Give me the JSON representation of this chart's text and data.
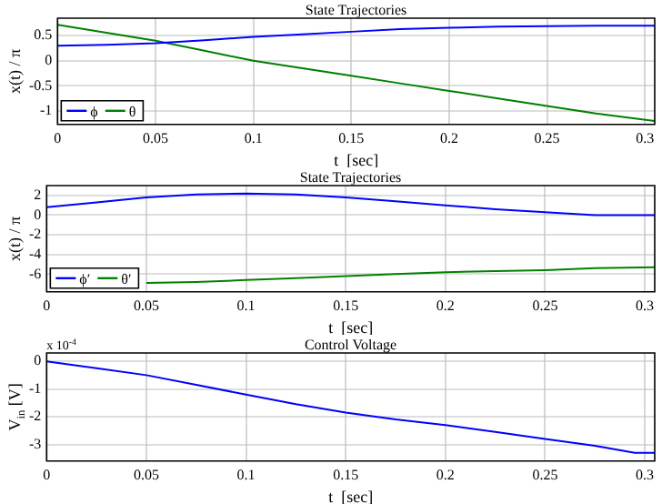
{
  "chart_data": [
    {
      "type": "line",
      "title": "State Trajectories",
      "xlabel": "t  [sec]",
      "ylabel": "x(t) / π",
      "x": [
        0,
        0.025,
        0.05,
        0.075,
        0.1,
        0.125,
        0.15,
        0.175,
        0.2,
        0.225,
        0.25,
        0.275,
        0.305
      ],
      "series": [
        {
          "name": "ϕ",
          "color": "#0000ff",
          "values": [
            0.3,
            0.32,
            0.35,
            0.41,
            0.48,
            0.53,
            0.58,
            0.63,
            0.66,
            0.68,
            0.69,
            0.7,
            0.7
          ]
        },
        {
          "name": "θ",
          "color": "#008000",
          "values": [
            0.72,
            0.56,
            0.4,
            0.2,
            0.0,
            -0.15,
            -0.3,
            -0.45,
            -0.6,
            -0.75,
            -0.9,
            -1.05,
            -1.2
          ]
        }
      ],
      "xlim": [
        0,
        0.305
      ],
      "xticks": [
        0,
        0.05,
        0.1,
        0.15,
        0.2,
        0.25,
        0.3
      ],
      "ylim": [
        -1.27,
        0.85
      ],
      "yticks": [
        -1,
        -0.5,
        0,
        0.5
      ],
      "grid": true,
      "legend": "bottom left",
      "line_style": "solid",
      "marker": "none"
    },
    {
      "type": "line",
      "title": "State Trajectories",
      "xlabel": "t  [sec]",
      "ylabel": "x(t) / π",
      "x": [
        0,
        0.025,
        0.05,
        0.075,
        0.1,
        0.125,
        0.15,
        0.175,
        0.2,
        0.225,
        0.25,
        0.275,
        0.305
      ],
      "series": [
        {
          "name": "ϕ′",
          "color": "#0000ff",
          "values": [
            0.8,
            1.3,
            1.8,
            2.1,
            2.2,
            2.1,
            1.8,
            1.4,
            1.0,
            0.6,
            0.3,
            0.0,
            0.0
          ]
        },
        {
          "name": "θ′",
          "color": "#008000",
          "values": [
            null,
            null,
            -6.9,
            -6.8,
            -6.6,
            -6.4,
            -6.2,
            -6.0,
            -5.8,
            -5.7,
            -5.6,
            -5.4,
            -5.3
          ]
        }
      ],
      "xlim": [
        0,
        0.305
      ],
      "xticks": [
        0,
        0.05,
        0.1,
        0.15,
        0.2,
        0.25,
        0.3
      ],
      "ylim": [
        -7.8,
        3
      ],
      "yticks": [
        -6,
        -4,
        -2,
        0,
        2
      ],
      "grid": true,
      "legend": "bottom left",
      "line_style": "solid",
      "marker": "none"
    },
    {
      "type": "line",
      "title": "Control Voltage",
      "xlabel": "t  [sec]",
      "ylabel": "V$_{in}$ [V]",
      "annotations": [
        "x 10$^{-4}$"
      ],
      "x": [
        0,
        0.025,
        0.05,
        0.075,
        0.1,
        0.125,
        0.15,
        0.175,
        0.2,
        0.225,
        0.25,
        0.275,
        0.295,
        0.305
      ],
      "series": [
        {
          "color": "#0000ff",
          "values": [
            0,
            -0.25,
            -0.5,
            -0.85,
            -1.2,
            -1.55,
            -1.85,
            -2.1,
            -2.3,
            -2.55,
            -2.8,
            -3.05,
            -3.3,
            -3.3
          ]
        }
      ],
      "xlim": [
        0,
        0.305
      ],
      "xticks": [
        0,
        0.05,
        0.1,
        0.15,
        0.2,
        0.25,
        0.3
      ],
      "ylim": [
        -3.6,
        0.3
      ],
      "yticks": [
        -3,
        -2,
        -1,
        0
      ],
      "grid": true,
      "legend": false,
      "line_style": "solid",
      "marker": "none"
    }
  ]
}
